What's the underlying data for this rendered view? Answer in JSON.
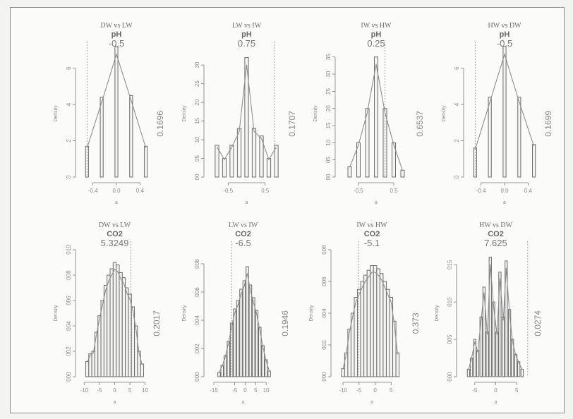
{
  "chart_data": [
    {
      "type": "bar",
      "group": "pH",
      "title": "DW vs LW",
      "subtitle": "pH",
      "observed": "-0.5",
      "observed_value": -0.5,
      "p_value": "0.1696",
      "xlabel": "a",
      "ylabel": "Density",
      "xlim": [
        -0.6,
        0.6
      ],
      "ylim": [
        0,
        0.7
      ],
      "x_ticks": [
        "-0.4",
        "0.0",
        "0.4"
      ],
      "x_tick_values": [
        -0.4,
        0,
        0.4
      ],
      "y_ticks": [
        "0",
        "2",
        "4",
        "6"
      ],
      "y_tick_values": [
        0,
        0.2,
        0.4,
        0.6
      ],
      "bin_width": 0.05,
      "x": [
        -0.5,
        -0.25,
        0,
        0.25,
        0.5
      ],
      "values": [
        0.17,
        0.44,
        0.72,
        0.45,
        0.17
      ]
    },
    {
      "type": "bar",
      "group": "pH",
      "title": "LW vs IW",
      "subtitle": "pH",
      "observed": "0.75",
      "observed_value": 0.75,
      "p_value": "0.1707",
      "xlabel": "a",
      "ylabel": "Density",
      "xlim": [
        -1.0,
        1.0
      ],
      "ylim": [
        0,
        0.34
      ],
      "x_ticks": [
        "-0.5",
        "0.5"
      ],
      "x_tick_values": [
        -0.5,
        0.5
      ],
      "y_ticks": [
        "00",
        "05",
        "10",
        "15",
        "20",
        "25",
        "30"
      ],
      "y_tick_values": [
        0,
        0.05,
        0.1,
        0.15,
        0.2,
        0.25,
        0.3
      ],
      "bin_width": 0.1,
      "x": [
        -0.8,
        -0.6,
        -0.4,
        -0.2,
        0,
        0.2,
        0.4,
        0.6,
        0.8
      ],
      "values": [
        0.085,
        0.05,
        0.085,
        0.13,
        0.32,
        0.13,
        0.11,
        0.05,
        0.085
      ]
    },
    {
      "type": "bar",
      "group": "pH",
      "title": "IW vs HW",
      "subtitle": "pH",
      "observed": "0.25",
      "observed_value": 0.25,
      "p_value": "0.6537",
      "xlabel": "a",
      "ylabel": "Density",
      "xlim": [
        -1.0,
        1.0
      ],
      "ylim": [
        0,
        0.37
      ],
      "x_ticks": [
        "-0.5",
        "0.5"
      ],
      "x_tick_values": [
        -0.5,
        0.5
      ],
      "y_ticks": [
        "00",
        "05",
        "10",
        "15",
        "20",
        "25",
        "30",
        "35"
      ],
      "y_tick_values": [
        0,
        0.05,
        0.1,
        0.15,
        0.2,
        0.25,
        0.3,
        0.35
      ],
      "bin_width": 0.1,
      "x": [
        -0.75,
        -0.5,
        -0.25,
        0,
        0.25,
        0.5,
        0.75
      ],
      "values": [
        0.03,
        0.1,
        0.2,
        0.35,
        0.2,
        0.1,
        0.02
      ]
    },
    {
      "type": "bar",
      "group": "pH",
      "title": "HW vs DW",
      "subtitle": "pH",
      "observed": "-0.5",
      "observed_value": -0.5,
      "p_value": "0.1699",
      "xlabel": "a",
      "ylabel": "Density",
      "xlim": [
        -0.6,
        0.6
      ],
      "ylim": [
        0,
        0.7
      ],
      "x_ticks": [
        "-0.4",
        "0.0",
        "0.4"
      ],
      "x_tick_values": [
        -0.4,
        0,
        0.4
      ],
      "y_ticks": [
        "0",
        "2",
        "4",
        "6"
      ],
      "y_tick_values": [
        0,
        0.2,
        0.4,
        0.6
      ],
      "bin_width": 0.05,
      "x": [
        -0.5,
        -0.25,
        0,
        0.25,
        0.5
      ],
      "values": [
        0.16,
        0.44,
        0.72,
        0.44,
        0.18
      ]
    },
    {
      "type": "bar",
      "group": "CO2",
      "title": "DW vs LW",
      "subtitle": "CO2",
      "observed": "5.3249",
      "observed_value": 5.3249,
      "p_value": "0.2017",
      "xlabel": "a",
      "ylabel": "Density",
      "xlim": [
        -11,
        11
      ],
      "ylim": [
        0,
        0.1
      ],
      "x_ticks": [
        "-10",
        "-5",
        "0",
        "5",
        "10"
      ],
      "x_tick_values": [
        -10,
        -5,
        0,
        5,
        10
      ],
      "y_ticks": [
        "000",
        "002",
        "004",
        "006",
        "008",
        "010"
      ],
      "y_tick_values": [
        0,
        0.02,
        0.04,
        0.06,
        0.08,
        0.1
      ],
      "bin_width": 1,
      "x": [
        -9,
        -8,
        -7,
        -6,
        -5,
        -4,
        -3,
        -2,
        -1,
        0,
        1,
        2,
        3,
        4,
        5,
        6,
        7,
        8,
        9
      ],
      "values": [
        0.012,
        0.018,
        0.02,
        0.035,
        0.048,
        0.06,
        0.072,
        0.08,
        0.085,
        0.09,
        0.088,
        0.082,
        0.078,
        0.07,
        0.065,
        0.055,
        0.04,
        0.02,
        0.01
      ]
    },
    {
      "type": "bar",
      "group": "CO2",
      "title": "LW vs IW",
      "subtitle": "CO2",
      "observed": "-6.5",
      "observed_value": -6.5,
      "p_value": "0.1946",
      "xlabel": "a",
      "ylabel": "Density",
      "xlim": [
        -17,
        15
      ],
      "ylim": [
        0,
        0.09
      ],
      "x_ticks": [
        "-15",
        "-5",
        "0",
        "5",
        "10"
      ],
      "x_tick_values": [
        -15,
        -5,
        0,
        5,
        10
      ],
      "y_ticks": [
        "000",
        "002",
        "004",
        "006",
        "008"
      ],
      "y_tick_values": [
        0,
        0.02,
        0.04,
        0.06,
        0.08
      ],
      "bin_width": 1.2,
      "x": [
        -12.5,
        -11,
        -9.5,
        -8,
        -6.5,
        -5,
        -3.5,
        -2,
        -0.5,
        1,
        2.5,
        4,
        5.5,
        7,
        8.5,
        10,
        11.5
      ],
      "values": [
        0.003,
        0.008,
        0.015,
        0.025,
        0.038,
        0.048,
        0.054,
        0.062,
        0.068,
        0.078,
        0.065,
        0.056,
        0.047,
        0.035,
        0.022,
        0.012,
        0.004
      ]
    },
    {
      "type": "bar",
      "group": "CO2",
      "title": "IW vs HW",
      "subtitle": "CO2",
      "observed": "-5.1",
      "observed_value": -5.1,
      "p_value": "0.373",
      "xlabel": "a",
      "ylabel": "Density",
      "xlim": [
        -12,
        10
      ],
      "ylim": [
        0,
        0.08
      ],
      "x_ticks": [
        "-10",
        "-5",
        "0",
        "5"
      ],
      "x_tick_values": [
        -10,
        -5,
        0,
        5
      ],
      "y_ticks": [
        "000",
        "002",
        "004",
        "006",
        "008"
      ],
      "y_tick_values": [
        0,
        0.02,
        0.04,
        0.06,
        0.08
      ],
      "bin_width": 1,
      "x": [
        -10,
        -9,
        -8,
        -7,
        -6,
        -5,
        -4,
        -3,
        -2,
        -1,
        0,
        1,
        2,
        3,
        4,
        5,
        6,
        7
      ],
      "values": [
        0.005,
        0.015,
        0.03,
        0.04,
        0.05,
        0.055,
        0.06,
        0.064,
        0.067,
        0.07,
        0.07,
        0.068,
        0.065,
        0.06,
        0.055,
        0.05,
        0.035,
        0.015
      ]
    },
    {
      "type": "bar",
      "group": "CO2",
      "title": "HW vs DW",
      "subtitle": "CO2",
      "observed": "7.625",
      "observed_value": 7.625,
      "p_value": "0.0274",
      "xlabel": "a",
      "ylabel": "Density",
      "xlim": [
        -8,
        8
      ],
      "ylim": [
        0,
        0.17
      ],
      "x_ticks": [
        "-5",
        "0",
        "5"
      ],
      "x_tick_values": [
        -5,
        0,
        5
      ],
      "y_ticks": [
        "000",
        "005",
        "010",
        "015"
      ],
      "y_tick_values": [
        0,
        0.05,
        0.1,
        0.15
      ],
      "bin_width": 0.55,
      "x": [
        -6.5,
        -5.8,
        -5,
        -4.3,
        -3.5,
        -2.8,
        -2,
        -1.3,
        -0.5,
        0.3,
        1,
        1.8,
        2.5,
        3.3,
        4,
        4.8,
        5.5,
        6.3
      ],
      "values": [
        0.01,
        0.025,
        0.05,
        0.035,
        0.08,
        0.12,
        0.06,
        0.16,
        0.1,
        0.06,
        0.14,
        0.08,
        0.155,
        0.09,
        0.05,
        0.03,
        0.02,
        0.01
      ]
    }
  ]
}
